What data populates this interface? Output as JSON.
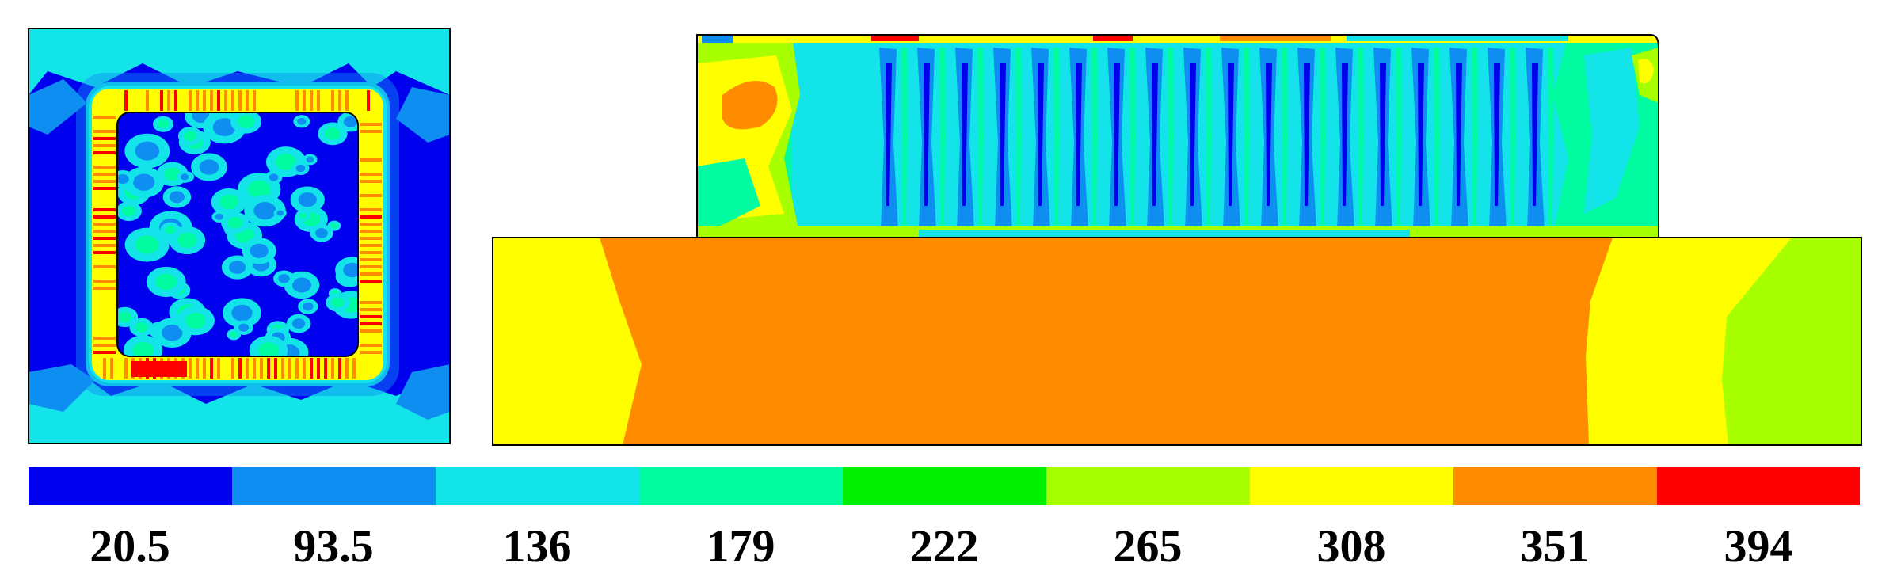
{
  "colors": {
    "levels": [
      "#0000ee",
      "#0f8ef2",
      "#12e4ea",
      "#00fba0",
      "#00f000",
      "#a8ff00",
      "#ffff00",
      "#ff8c00",
      "#ff0000"
    ],
    "border": "#000000",
    "background": "#ffffff"
  },
  "legend": {
    "labels": [
      "20.5",
      "93.5",
      "136",
      "179",
      "222",
      "265",
      "308",
      "351",
      "394"
    ]
  }
}
